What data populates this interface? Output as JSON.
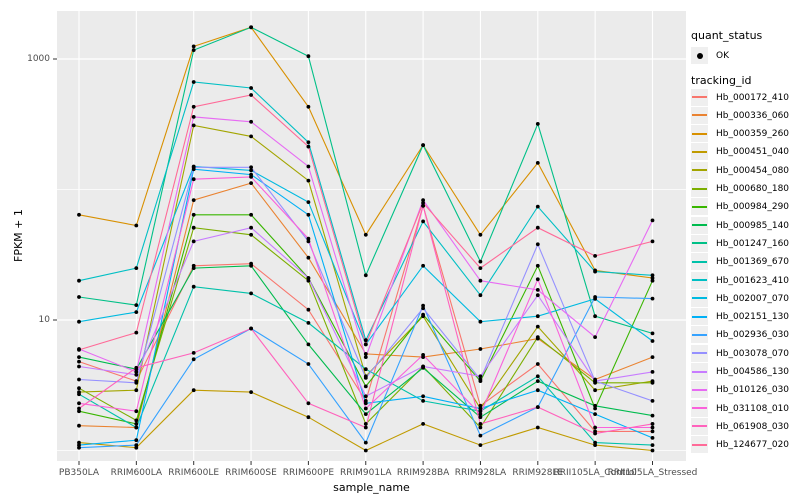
{
  "figure": {
    "background": "#FFFFFF",
    "panel_background": "#EBEBEB",
    "gridline_color": "#FFFFFF",
    "tick_text_color": "#4D4D4D",
    "tick_mark_color": "#333333",
    "point_color": "#000000"
  },
  "legend": {
    "quant_status": {
      "title": "quant_status",
      "items": [
        {
          "label": "OK",
          "marker": "black-point"
        }
      ]
    },
    "tracking": {
      "title": "tracking_id"
    }
  },
  "chart_data": {
    "type": "line",
    "title": "",
    "xlabel": "sample_name",
    "ylabel": "FPKM + 1",
    "y_scale": "log10",
    "y_major_ticks": [
      1000,
      10
    ],
    "y_minor_gridlines": [
      100,
      1
    ],
    "y_range_approx": [
      0.8,
      2300
    ],
    "grid": true,
    "legend_position": "right",
    "point_marker": "filled-black-circle",
    "categories": [
      "PB350LA",
      "RRIM600LA",
      "RRIM600LE",
      "RRIM600SE",
      "RRIM600PE",
      "RRIM901LA",
      "RRIM928BA",
      "RRIM928LA",
      "RRIM928LE",
      "RRII105LA_Control",
      "RRII105LA_Stressed"
    ],
    "series": [
      {
        "name": "Hb_000172_410",
        "color": "#F8766D",
        "values": [
          4.8,
          3.4,
          26,
          27,
          12,
          2.4,
          75,
          2.2,
          4.6,
          1.4,
          1.4
        ]
      },
      {
        "name": "Hb_000336_060",
        "color": "#EA8331",
        "values": [
          1.55,
          1.5,
          83,
          112,
          30,
          5.5,
          5.2,
          6.0,
          7.2,
          3.5,
          5.2
        ]
      },
      {
        "name": "Hb_000359_260",
        "color": "#D89000",
        "values": [
          64,
          53,
          1250,
          1750,
          430,
          45,
          219,
          45,
          160,
          24,
          21
        ]
      },
      {
        "name": "Hb_000451_040",
        "color": "#C09B00",
        "values": [
          1.15,
          1.05,
          2.9,
          2.8,
          1.8,
          1.0,
          1.6,
          1.1,
          1.5,
          1.1,
          1.0
        ]
      },
      {
        "name": "Hb_000454_080",
        "color": "#A3A500",
        "values": [
          2.8,
          2.9,
          310,
          255,
          117,
          3.7,
          10.7,
          2.1,
          8.9,
          2.9,
          3.4
        ]
      },
      {
        "name": "Hb_000680_180",
        "color": "#7CAE00",
        "values": [
          3.0,
          1.7,
          51,
          45,
          20,
          1.6,
          4.4,
          1.5,
          7.4,
          3.3,
          3.3
        ]
      },
      {
        "name": "Hb_000984_290",
        "color": "#39B600",
        "values": [
          2.0,
          1.6,
          64,
          64,
          21,
          3.1,
          11,
          3.4,
          26,
          2.1,
          20
        ]
      },
      {
        "name": "Hb_000985_140",
        "color": "#00BB4E",
        "values": [
          5.2,
          4.2,
          25,
          26,
          6.5,
          1.9,
          4.3,
          1.8,
          3.4,
          2.2,
          1.85
        ]
      },
      {
        "name": "Hb_001247_160",
        "color": "#00C087",
        "values": [
          15,
          13,
          1170,
          1750,
          1050,
          22,
          219,
          28,
          318,
          10.7,
          7.9
        ]
      },
      {
        "name": "Hb_001369_670",
        "color": "#00C1A9",
        "values": [
          2.7,
          1.5,
          18,
          16,
          9.5,
          4.2,
          2.4,
          2.0,
          3.7,
          1.15,
          1.1
        ]
      },
      {
        "name": "Hb_001623_410",
        "color": "#00BFC4",
        "values": [
          20,
          25,
          666,
          600,
          230,
          7.0,
          57,
          15.5,
          74,
          23.5,
          22
        ]
      },
      {
        "name": "Hb_002007_070",
        "color": "#00BAE0",
        "values": [
          9.7,
          11.5,
          150,
          140,
          80,
          6.5,
          26,
          9.7,
          10.7,
          14.5,
          6.9
        ]
      },
      {
        "name": "Hb_002151_130",
        "color": "#00B0F6",
        "values": [
          1.1,
          1.2,
          143,
          130,
          64,
          2.3,
          2.6,
          2.1,
          2.9,
          1.9,
          1.25
        ]
      },
      {
        "name": "Hb_002936_030",
        "color": "#35A2FF",
        "values": [
          1.05,
          1.1,
          5.0,
          8.6,
          4.6,
          1.15,
          12.9,
          1.3,
          2.15,
          15,
          14.6
        ]
      },
      {
        "name": "Hb_003078_070",
        "color": "#9590FF",
        "values": [
          3.5,
          3.3,
          148,
          148,
          40,
          3.6,
          12.3,
          3.5,
          38,
          3.4,
          2.4
        ]
      },
      {
        "name": "Hb_004586_130",
        "color": "#C77CFF",
        "values": [
          4.4,
          3.8,
          40,
          51,
          21,
          2.6,
          4.4,
          3.7,
          15.5,
          3.4,
          4.0
        ]
      },
      {
        "name": "Hb_010126_030",
        "color": "#E76BF3",
        "values": [
          6.0,
          4.0,
          360,
          330,
          150,
          5.2,
          83,
          20,
          17,
          7.4,
          58
        ]
      },
      {
        "name": "Hb_031108_010",
        "color": "#FA62DB",
        "values": [
          2.3,
          2.0,
          120,
          125,
          42,
          2.1,
          5.4,
          1.9,
          20.5,
          1.5,
          1.5
        ]
      },
      {
        "name": "Hb_061908_030",
        "color": "#FF62BC",
        "values": [
          2.1,
          4.3,
          5.6,
          8.6,
          2.3,
          1.5,
          75,
          1.6,
          2.15,
          1.35,
          1.6
        ]
      },
      {
        "name": "Hb_124677_020",
        "color": "#FF6A98",
        "values": [
          5.9,
          8.0,
          430,
          530,
          213,
          6.5,
          79,
          25,
          51,
          31,
          40
        ]
      }
    ]
  }
}
